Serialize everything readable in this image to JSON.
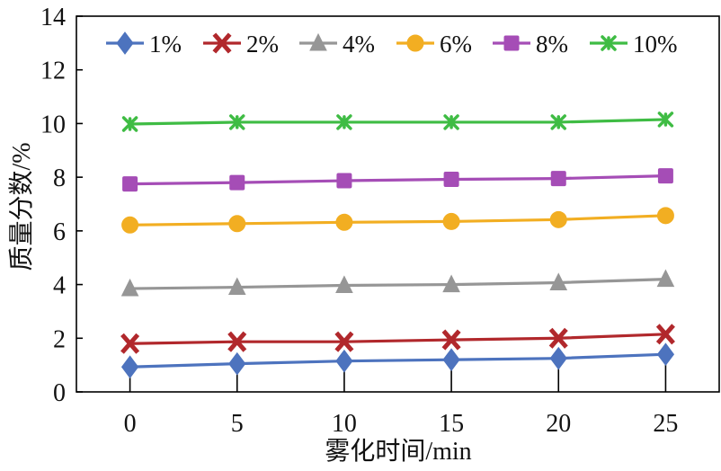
{
  "chart_data": {
    "type": "line",
    "x": [
      0,
      5,
      10,
      15,
      20,
      25
    ],
    "yticks": [
      0,
      2,
      4,
      6,
      8,
      10,
      12,
      14
    ],
    "xlabel": "雾化时间/min",
    "ylabel": "质量分数/%",
    "xlim": [
      -2.5,
      27.5
    ],
    "ylim": [
      0,
      14
    ],
    "grid": false,
    "legend": "top",
    "series": [
      {
        "name": "1%",
        "color": "#4d73be",
        "marker": "diamond",
        "values": [
          0.93,
          1.05,
          1.15,
          1.2,
          1.25,
          1.4
        ]
      },
      {
        "name": "2%",
        "color": "#b1282c",
        "marker": "x",
        "values": [
          1.8,
          1.87,
          1.87,
          1.94,
          2.0,
          2.15
        ]
      },
      {
        "name": "4%",
        "color": "#969696",
        "marker": "triangle",
        "values": [
          3.85,
          3.9,
          3.97,
          4.0,
          4.07,
          4.2
        ]
      },
      {
        "name": "6%",
        "color": "#f2ae22",
        "marker": "circle",
        "values": [
          6.22,
          6.27,
          6.32,
          6.35,
          6.42,
          6.57
        ]
      },
      {
        "name": "8%",
        "color": "#a54db6",
        "marker": "square",
        "values": [
          7.75,
          7.8,
          7.87,
          7.92,
          7.95,
          8.05
        ]
      },
      {
        "name": "10%",
        "color": "#3fbc44",
        "marker": "asterisk",
        "values": [
          9.98,
          10.05,
          10.05,
          10.05,
          10.05,
          10.15
        ]
      }
    ]
  }
}
